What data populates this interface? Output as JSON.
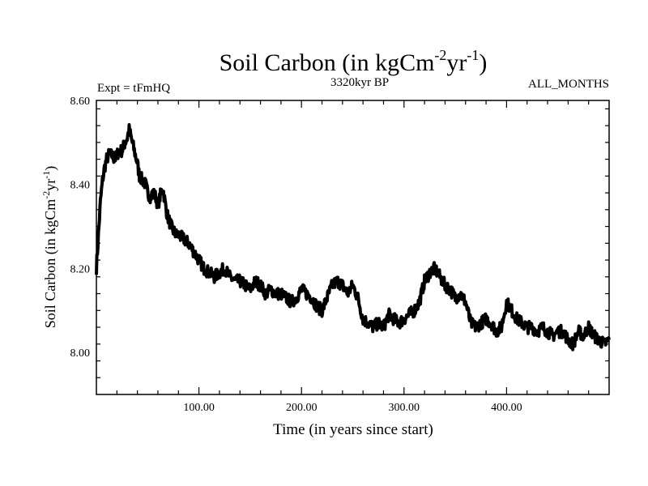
{
  "chart_data": {
    "type": "line",
    "title": {
      "base": "Soil Carbon (in kgCm",
      "sup1": "-2",
      "mid": "yr",
      "sup2": "-1",
      "end": ")"
    },
    "subtitle_left": "Expt = tFmHQ",
    "subtitle_center": "3320kyr BP",
    "subtitle_right": "ALL_MONTHS",
    "xlabel": "Time (in years since start)",
    "ylabel": {
      "base": "Soil Carbon (in kgCm",
      "sup1": "-2",
      "mid": "yr",
      "sup2": "-1",
      "end": ")"
    },
    "xlim": [
      0,
      500
    ],
    "ylim": [
      7.9,
      8.6
    ],
    "xticks": [
      100,
      200,
      300,
      400
    ],
    "xtick_labels": [
      "100.00",
      "200.00",
      "300.00",
      "400.00"
    ],
    "yticks": [
      8.0,
      8.2,
      8.4,
      8.6
    ],
    "ytick_labels": [
      "8.00",
      "8.20",
      "8.40",
      "8.60"
    ],
    "grid": false,
    "line_color": "#000000",
    "series": [
      {
        "x": [
          0,
          2,
          4,
          6,
          8,
          10,
          12,
          15,
          18,
          20,
          22,
          25,
          28,
          30,
          32,
          34,
          36,
          38,
          40,
          42,
          45,
          48,
          50,
          53,
          55,
          58,
          60,
          63,
          65,
          68,
          70,
          73,
          75,
          78,
          80,
          85,
          90,
          95,
          100,
          105,
          110,
          115,
          120,
          125,
          130,
          135,
          140,
          145,
          150,
          155,
          160,
          165,
          170,
          175,
          180,
          185,
          190,
          195,
          200,
          205,
          210,
          215,
          220,
          225,
          230,
          235,
          240,
          245,
          250,
          255,
          260,
          265,
          270,
          275,
          280,
          285,
          290,
          295,
          300,
          305,
          310,
          315,
          320,
          325,
          330,
          335,
          340,
          345,
          350,
          355,
          360,
          365,
          370,
          375,
          380,
          385,
          390,
          395,
          400,
          405,
          410,
          415,
          420,
          425,
          430,
          435,
          440,
          445,
          450,
          455,
          460,
          465,
          470,
          475,
          480,
          485,
          490,
          495,
          500
        ],
        "y": [
          8.2,
          8.28,
          8.36,
          8.41,
          8.44,
          8.46,
          8.47,
          8.47,
          8.46,
          8.47,
          8.48,
          8.48,
          8.5,
          8.51,
          8.53,
          8.51,
          8.49,
          8.47,
          8.45,
          8.42,
          8.41,
          8.4,
          8.38,
          8.37,
          8.38,
          8.37,
          8.35,
          8.38,
          8.39,
          8.34,
          8.32,
          8.3,
          8.29,
          8.28,
          8.28,
          8.27,
          8.26,
          8.24,
          8.22,
          8.2,
          8.19,
          8.18,
          8.19,
          8.2,
          8.18,
          8.17,
          8.17,
          8.16,
          8.15,
          8.17,
          8.16,
          8.14,
          8.15,
          8.14,
          8.14,
          8.13,
          8.12,
          8.13,
          8.15,
          8.14,
          8.13,
          8.11,
          8.1,
          8.13,
          8.16,
          8.17,
          8.16,
          8.14,
          8.16,
          8.13,
          8.08,
          8.07,
          8.06,
          8.07,
          8.06,
          8.09,
          8.08,
          8.07,
          8.08,
          8.09,
          8.1,
          8.12,
          8.17,
          8.19,
          8.2,
          8.18,
          8.16,
          8.15,
          8.13,
          8.14,
          8.12,
          8.07,
          8.06,
          8.07,
          8.08,
          8.07,
          8.05,
          8.06,
          8.12,
          8.1,
          8.08,
          8.07,
          8.06,
          8.06,
          8.05,
          8.06,
          8.05,
          8.04,
          8.05,
          8.05,
          8.03,
          8.02,
          8.05,
          8.04,
          8.06,
          8.04,
          8.03,
          8.02,
          8.03
        ]
      }
    ]
  }
}
